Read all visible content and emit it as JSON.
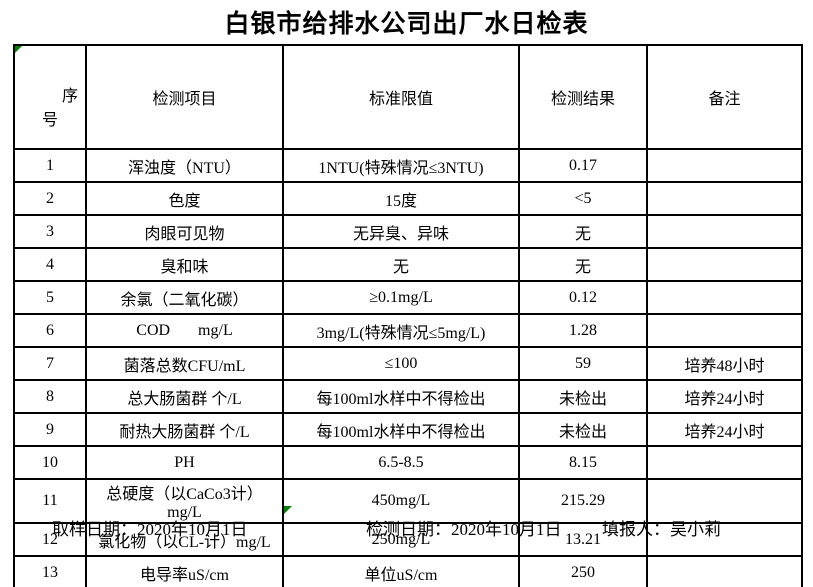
{
  "title": "白银市给排水公司出厂水日检表",
  "colors": {
    "background": "#ffffff",
    "table_border": "#000000",
    "marker_green": "#008000"
  },
  "icons": {
    "corner_marker": "green-corner-triangle",
    "fill_handle": "green-fill-handle-triangle"
  },
  "table": {
    "headers": [
      "序号",
      "检测项目",
      "标准限值",
      "检测结果",
      "备注"
    ],
    "rows": [
      {
        "no": "1",
        "item": "浑浊度（NTU）",
        "limit": "1NTU(特殊情况≤3NTU)",
        "result": "0.17",
        "note": ""
      },
      {
        "no": "2",
        "item": "色度",
        "limit": "15度",
        "result": "<5",
        "note": ""
      },
      {
        "no": "3",
        "item": "肉眼可见物",
        "limit": "无异臭、异味",
        "result": "无",
        "note": ""
      },
      {
        "no": "4",
        "item": "臭和味",
        "limit": "无",
        "result": "无",
        "note": ""
      },
      {
        "no": "5",
        "item": "余氯（二氧化碳）",
        "limit": "≥0.1mg/L",
        "result": "0.12",
        "note": ""
      },
      {
        "no": "6",
        "item": "COD       mg/L",
        "limit": "3mg/L(特殊情况≤5mg/L)",
        "result": "1.28",
        "note": ""
      },
      {
        "no": "7",
        "item": "菌落总数CFU/mL",
        "limit": "≤100",
        "result": "59",
        "note": "培养48小时"
      },
      {
        "no": "8",
        "item": "总大肠菌群 个/L",
        "limit": "每100ml水样中不得检出",
        "result": "未检出",
        "note": "培养24小时"
      },
      {
        "no": "9",
        "item": "耐热大肠菌群 个/L",
        "limit": "每100ml水样中不得检出",
        "result": "未检出",
        "note": "培养24小时"
      },
      {
        "no": "10",
        "item": "PH",
        "limit": "6.5-8.5",
        "result": "8.15",
        "note": ""
      },
      {
        "no": "11",
        "item": "总硬度（以CaCo3计）mg/L",
        "limit": "450mg/L",
        "result": "215.29",
        "note": ""
      },
      {
        "no": "12",
        "item": "氯化物（以CL-计）mg/L",
        "limit": "250mg/L",
        "result": "13.21",
        "note": ""
      },
      {
        "no": "13",
        "item": "电导率uS/cm",
        "limit": "单位uS/cm",
        "result": "250",
        "note": ""
      }
    ]
  },
  "footer": {
    "sample_date": "取样日期：2020年10月1日",
    "test_date": "检测日期：2020年10月1日",
    "reporter": "填报人：吴小莉"
  }
}
